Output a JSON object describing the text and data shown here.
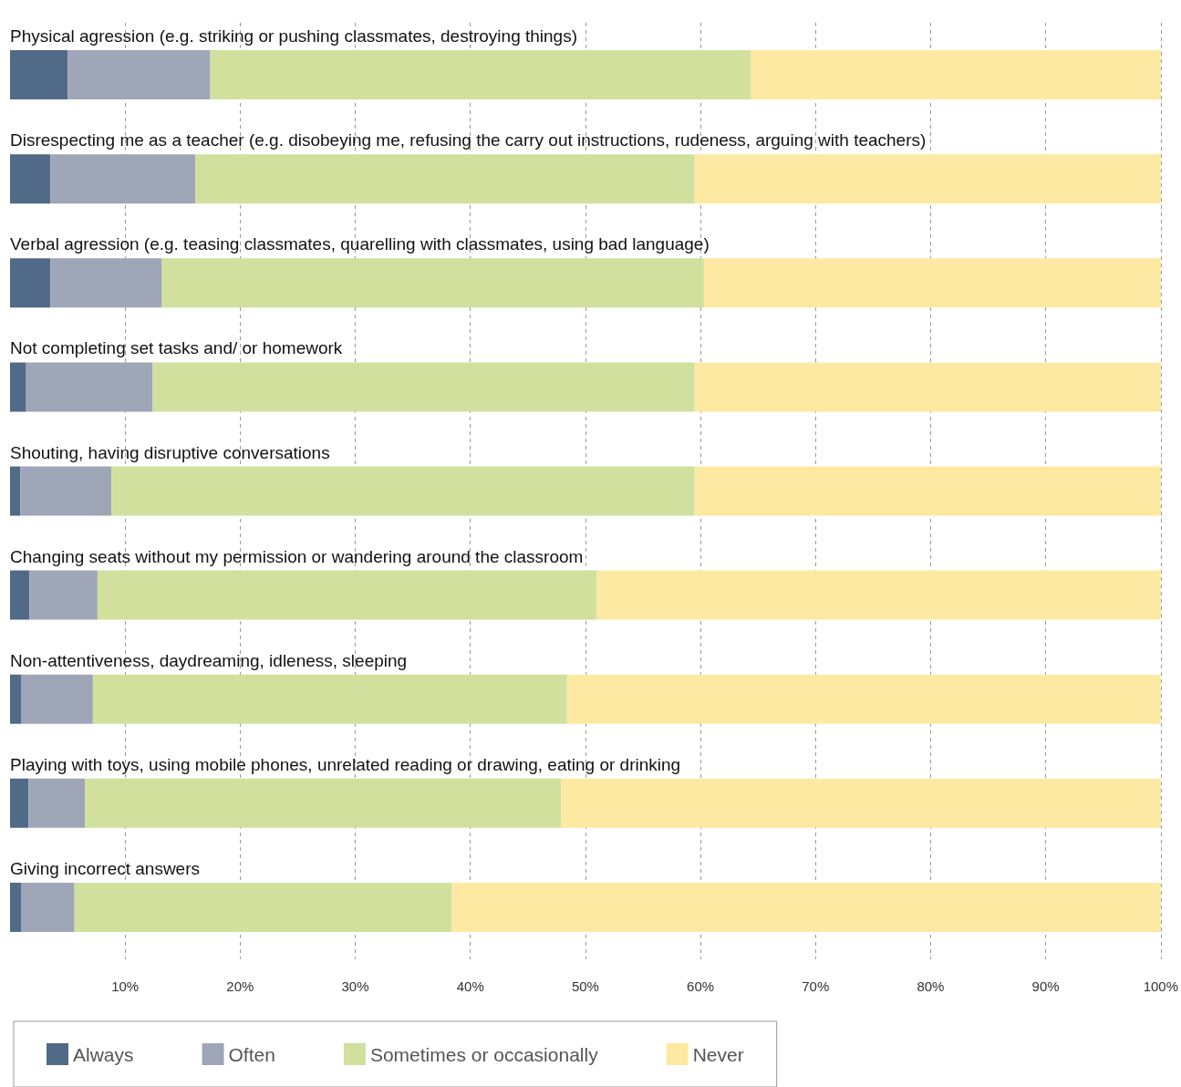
{
  "chart_data": {
    "type": "bar",
    "orientation": "horizontal",
    "stacked": true,
    "categories": [
      "Physical agression (e.g. striking or pushing classmates, destroying things)",
      "Disrespecting me as a teacher (e.g. disobeying me, refusing the carry out instructions, rudeness, arguing with teachers)",
      "Verbal agression (e.g. teasing classmates, quarelling with classmates, using bad language)",
      "Not completing set tasks and/ or homework",
      "Shouting, having disruptive conversations",
      "Changing seats without my permission or wandering around the classroom",
      "Non-attentiveness, daydreaming, idleness, sleeping",
      "Playing with toys, using mobile phones, unrelated reading or drawing, eating or drinking",
      "Giving incorrect answers"
    ],
    "series": [
      {
        "name": "Always",
        "color": "#506a88",
        "values": [
          5.0,
          3.5,
          3.5,
          1.4,
          0.9,
          1.7,
          1.0,
          1.6,
          1.0
        ]
      },
      {
        "name": "Often",
        "color": "#9ea6b8",
        "values": [
          12.4,
          12.6,
          9.7,
          11.0,
          7.9,
          5.9,
          6.2,
          4.9,
          4.6
        ]
      },
      {
        "name": "Sometimes or occasionally",
        "color": "#d1e09d",
        "values": [
          47.0,
          43.4,
          47.1,
          47.1,
          50.7,
          43.4,
          41.2,
          41.4,
          32.8
        ]
      },
      {
        "name": "Never",
        "color": "#fde9a2",
        "values": [
          35.6,
          40.5,
          39.7,
          40.5,
          40.5,
          49.0,
          51.6,
          52.1,
          61.6
        ]
      }
    ],
    "xlim": [
      0,
      100
    ],
    "xticks": [
      {
        "value": 10,
        "label": "10%"
      },
      {
        "value": 20,
        "label": "20%"
      },
      {
        "value": 30,
        "label": "30%"
      },
      {
        "value": 40,
        "label": "40%"
      },
      {
        "value": 50,
        "label": "50%"
      },
      {
        "value": 60,
        "label": "60%"
      },
      {
        "value": 70,
        "label": "70%"
      },
      {
        "value": 80,
        "label": "80%"
      },
      {
        "value": 90,
        "label": "90%"
      },
      {
        "value": 100,
        "label": "100%"
      }
    ],
    "grid": "x",
    "legend": "bottom"
  }
}
